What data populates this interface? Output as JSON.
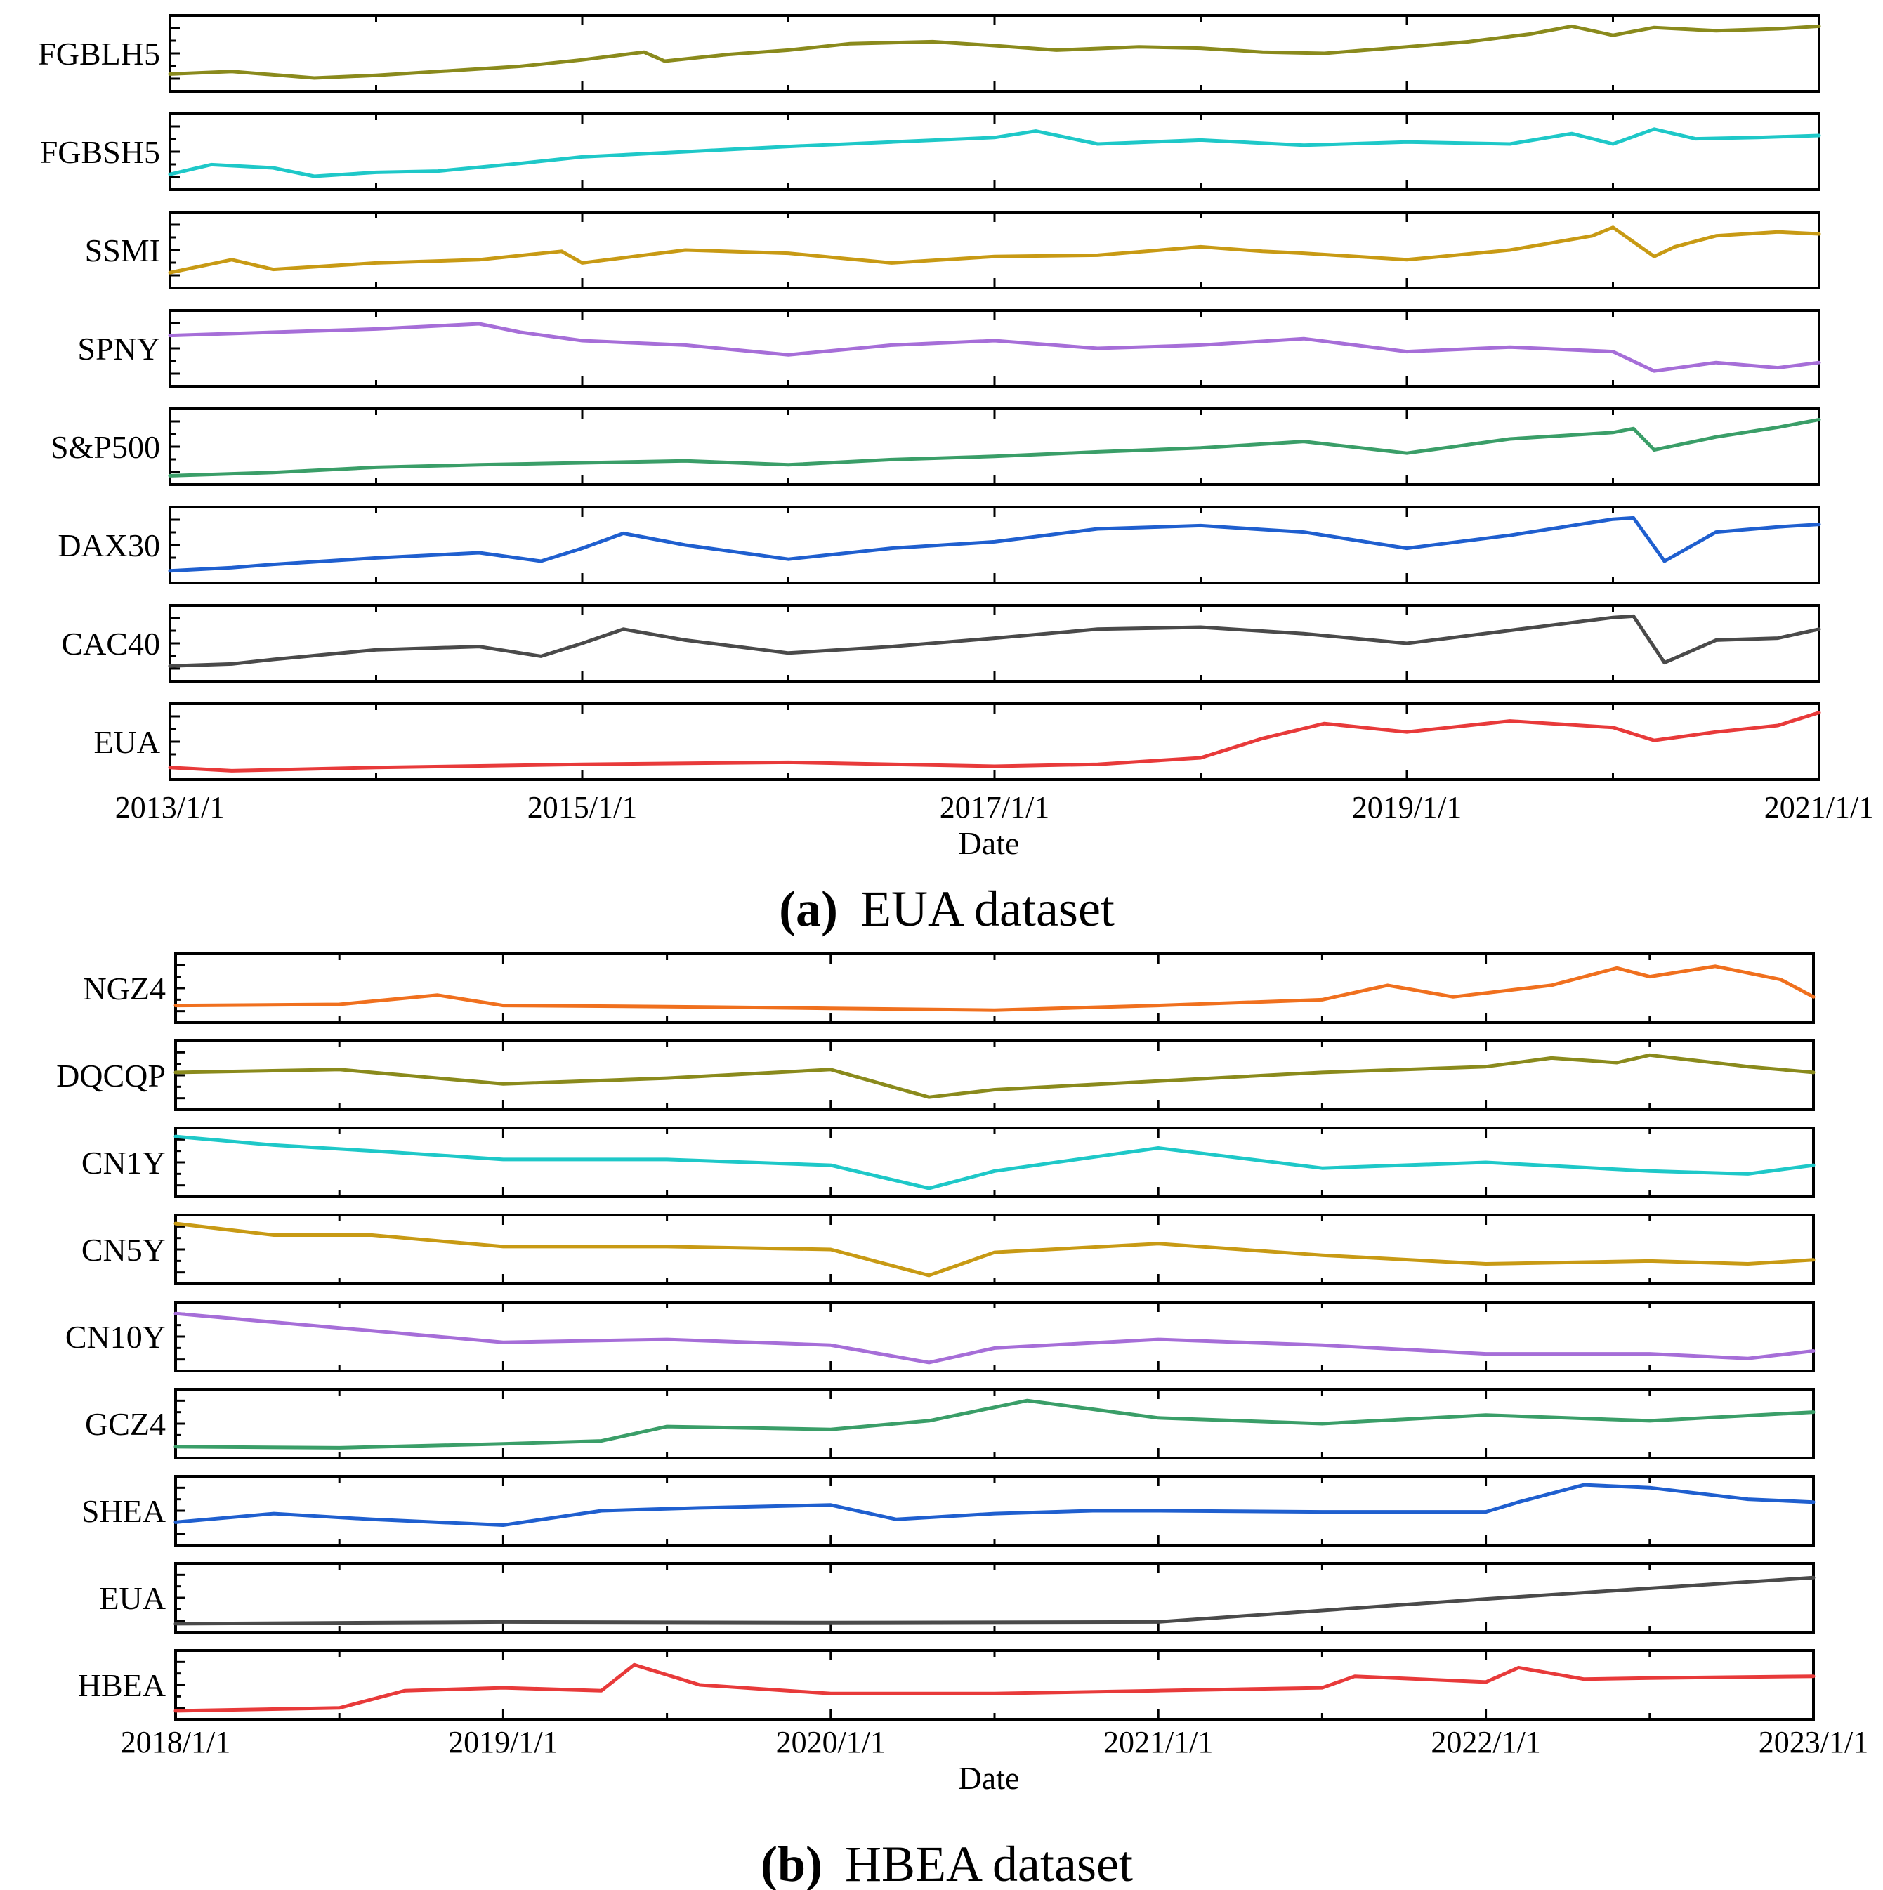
{
  "chart_data": [
    {
      "type": "line",
      "panel_id": "a",
      "caption_letter": "(a)",
      "caption_title": "EUA dataset",
      "xlabel": "Date",
      "x_ticks": [
        "2013/1/1",
        "2015/1/1",
        "2017/1/1",
        "2019/1/1",
        "2021/1/1"
      ],
      "x_range": [
        2013.0,
        2021.0
      ],
      "y_range": [
        0,
        1
      ],
      "y_values_note": "Normalized levels (0 = panel bottom, 1 = panel top); no y tick labels are printed.",
      "grid": false,
      "series": [
        {
          "name": "FGBLH5",
          "color": "#8a8a1c",
          "x": [
            2013.0,
            2013.3,
            2013.7,
            2014.0,
            2014.3,
            2014.7,
            2015.0,
            2015.3,
            2015.4,
            2015.7,
            2016.0,
            2016.3,
            2016.7,
            2017.0,
            2017.3,
            2017.7,
            2018.0,
            2018.3,
            2018.6,
            2019.0,
            2019.3,
            2019.6,
            2019.8,
            2020.0,
            2020.2,
            2020.5,
            2020.8,
            2021.0
          ],
          "values": [
            0.18,
            0.22,
            0.12,
            0.16,
            0.22,
            0.3,
            0.4,
            0.52,
            0.38,
            0.48,
            0.55,
            0.65,
            0.68,
            0.62,
            0.55,
            0.6,
            0.58,
            0.52,
            0.5,
            0.6,
            0.68,
            0.8,
            0.92,
            0.78,
            0.9,
            0.85,
            0.88,
            0.92
          ]
        },
        {
          "name": "FGBSH5",
          "color": "#1ec8c8",
          "x": [
            2013.0,
            2013.2,
            2013.5,
            2013.7,
            2014.0,
            2014.3,
            2014.7,
            2015.0,
            2015.5,
            2016.0,
            2016.5,
            2017.0,
            2017.2,
            2017.5,
            2018.0,
            2018.5,
            2019.0,
            2019.5,
            2019.8,
            2020.0,
            2020.2,
            2020.4,
            2020.7,
            2021.0
          ],
          "values": [
            0.15,
            0.3,
            0.25,
            0.12,
            0.18,
            0.2,
            0.32,
            0.42,
            0.5,
            0.58,
            0.65,
            0.72,
            0.82,
            0.62,
            0.68,
            0.6,
            0.65,
            0.62,
            0.78,
            0.62,
            0.85,
            0.7,
            0.72,
            0.75
          ]
        },
        {
          "name": "SSMI",
          "color": "#c89a14",
          "x": [
            2013.0,
            2013.3,
            2013.5,
            2014.0,
            2014.5,
            2014.9,
            2015.0,
            2015.5,
            2016.0,
            2016.5,
            2017.0,
            2017.5,
            2018.0,
            2018.3,
            2018.5,
            2019.0,
            2019.5,
            2019.9,
            2020.0,
            2020.2,
            2020.3,
            2020.5,
            2020.8,
            2021.0
          ],
          "values": [
            0.15,
            0.35,
            0.2,
            0.3,
            0.35,
            0.48,
            0.3,
            0.5,
            0.45,
            0.3,
            0.4,
            0.42,
            0.55,
            0.48,
            0.45,
            0.35,
            0.5,
            0.72,
            0.85,
            0.4,
            0.55,
            0.72,
            0.78,
            0.75
          ]
        },
        {
          "name": "SPNY",
          "color": "#a66ed8",
          "x": [
            2013.0,
            2013.5,
            2014.0,
            2014.5,
            2014.7,
            2015.0,
            2015.5,
            2016.0,
            2016.5,
            2017.0,
            2017.5,
            2018.0,
            2018.5,
            2019.0,
            2019.5,
            2020.0,
            2020.2,
            2020.5,
            2020.8,
            2021.0
          ],
          "values": [
            0.7,
            0.75,
            0.8,
            0.88,
            0.75,
            0.62,
            0.55,
            0.4,
            0.55,
            0.62,
            0.5,
            0.55,
            0.65,
            0.45,
            0.52,
            0.45,
            0.15,
            0.28,
            0.2,
            0.28
          ]
        },
        {
          "name": "S&P500",
          "color": "#3a9e68",
          "x": [
            2013.0,
            2013.5,
            2014.0,
            2014.5,
            2015.0,
            2015.5,
            2016.0,
            2016.5,
            2017.0,
            2017.5,
            2018.0,
            2018.5,
            2019.0,
            2019.5,
            2020.0,
            2020.1,
            2020.2,
            2020.5,
            2020.8,
            2021.0
          ],
          "values": [
            0.05,
            0.1,
            0.18,
            0.22,
            0.25,
            0.28,
            0.22,
            0.3,
            0.35,
            0.42,
            0.48,
            0.58,
            0.4,
            0.62,
            0.72,
            0.78,
            0.45,
            0.65,
            0.8,
            0.92
          ]
        },
        {
          "name": "DAX30",
          "color": "#1f5fcf",
          "x": [
            2013.0,
            2013.3,
            2013.5,
            2014.0,
            2014.5,
            2014.8,
            2015.0,
            2015.2,
            2015.5,
            2016.0,
            2016.5,
            2017.0,
            2017.5,
            2018.0,
            2018.5,
            2019.0,
            2019.5,
            2020.0,
            2020.1,
            2020.25,
            2020.5,
            2020.8,
            2021.0
          ],
          "values": [
            0.1,
            0.15,
            0.2,
            0.3,
            0.38,
            0.25,
            0.45,
            0.68,
            0.5,
            0.28,
            0.45,
            0.55,
            0.75,
            0.8,
            0.7,
            0.45,
            0.65,
            0.9,
            0.92,
            0.25,
            0.7,
            0.78,
            0.82
          ]
        },
        {
          "name": "CAC40",
          "color": "#4a4a4a",
          "x": [
            2013.0,
            2013.3,
            2013.5,
            2014.0,
            2014.5,
            2014.8,
            2015.0,
            2015.2,
            2015.5,
            2016.0,
            2016.5,
            2017.0,
            2017.5,
            2018.0,
            2018.5,
            2019.0,
            2019.5,
            2020.0,
            2020.1,
            2020.25,
            2020.5,
            2020.8,
            2021.0
          ],
          "values": [
            0.15,
            0.18,
            0.25,
            0.4,
            0.45,
            0.3,
            0.5,
            0.72,
            0.55,
            0.35,
            0.45,
            0.58,
            0.72,
            0.75,
            0.65,
            0.5,
            0.7,
            0.9,
            0.92,
            0.2,
            0.55,
            0.58,
            0.72
          ]
        },
        {
          "name": "EUA",
          "color": "#e83a3a",
          "x": [
            2013.0,
            2013.3,
            2014.0,
            2015.0,
            2016.0,
            2017.0,
            2017.5,
            2018.0,
            2018.3,
            2018.6,
            2019.0,
            2019.5,
            2020.0,
            2020.2,
            2020.5,
            2020.8,
            2021.0
          ],
          "values": [
            0.1,
            0.05,
            0.1,
            0.15,
            0.18,
            0.12,
            0.15,
            0.25,
            0.55,
            0.78,
            0.65,
            0.82,
            0.72,
            0.52,
            0.65,
            0.75,
            0.95
          ]
        }
      ]
    },
    {
      "type": "line",
      "panel_id": "b",
      "caption_letter": "(b)",
      "caption_title": "HBEA dataset",
      "xlabel": "Date",
      "x_ticks": [
        "2018/1/1",
        "2019/1/1",
        "2020/1/1",
        "2021/1/1",
        "2022/1/1",
        "2023/1/1"
      ],
      "x_range": [
        2018.0,
        2023.0
      ],
      "y_range": [
        0,
        1
      ],
      "y_values_note": "Normalized levels (0 = panel bottom, 1 = panel top); no y tick labels are printed.",
      "grid": false,
      "series": [
        {
          "name": "NGZ4",
          "color": "#f0701e",
          "x": [
            2018.0,
            2018.5,
            2018.8,
            2019.0,
            2019.5,
            2020.0,
            2020.5,
            2021.0,
            2021.5,
            2021.7,
            2021.9,
            2022.2,
            2022.4,
            2022.5,
            2022.7,
            2022.9,
            2023.0
          ],
          "values": [
            0.2,
            0.22,
            0.38,
            0.2,
            0.18,
            0.15,
            0.12,
            0.2,
            0.3,
            0.55,
            0.35,
            0.55,
            0.85,
            0.7,
            0.88,
            0.65,
            0.35
          ]
        },
        {
          "name": "DQCQP",
          "color": "#8a8a1c",
          "x": [
            2018.0,
            2018.5,
            2019.0,
            2019.5,
            2020.0,
            2020.3,
            2020.5,
            2021.0,
            2021.5,
            2022.0,
            2022.2,
            2022.4,
            2022.5,
            2022.8,
            2023.0
          ],
          "values": [
            0.55,
            0.6,
            0.35,
            0.45,
            0.6,
            0.12,
            0.25,
            0.4,
            0.55,
            0.65,
            0.8,
            0.72,
            0.85,
            0.65,
            0.55
          ]
        },
        {
          "name": "CN1Y",
          "color": "#1ec8c8",
          "x": [
            2018.0,
            2018.3,
            2018.6,
            2019.0,
            2019.5,
            2020.0,
            2020.3,
            2020.5,
            2021.0,
            2021.5,
            2022.0,
            2022.5,
            2022.8,
            2023.0
          ],
          "values": [
            0.95,
            0.8,
            0.7,
            0.55,
            0.55,
            0.45,
            0.05,
            0.35,
            0.75,
            0.4,
            0.5,
            0.35,
            0.3,
            0.45
          ]
        },
        {
          "name": "CN5Y",
          "color": "#c89a14",
          "x": [
            2018.0,
            2018.3,
            2018.6,
            2019.0,
            2019.5,
            2020.0,
            2020.3,
            2020.5,
            2021.0,
            2021.5,
            2022.0,
            2022.5,
            2022.8,
            2023.0
          ],
          "values": [
            0.95,
            0.75,
            0.75,
            0.55,
            0.55,
            0.5,
            0.05,
            0.45,
            0.6,
            0.4,
            0.25,
            0.3,
            0.25,
            0.32
          ]
        },
        {
          "name": "CN10Y",
          "color": "#a66ed8",
          "x": [
            2018.0,
            2018.3,
            2018.6,
            2019.0,
            2019.5,
            2020.0,
            2020.3,
            2020.5,
            2021.0,
            2021.5,
            2022.0,
            2022.5,
            2022.8,
            2023.0
          ],
          "values": [
            0.9,
            0.75,
            0.6,
            0.4,
            0.45,
            0.35,
            0.05,
            0.3,
            0.45,
            0.35,
            0.2,
            0.2,
            0.12,
            0.25
          ]
        },
        {
          "name": "GCZ4",
          "color": "#3a9e68",
          "x": [
            2018.0,
            2018.5,
            2019.0,
            2019.3,
            2019.5,
            2020.0,
            2020.3,
            2020.6,
            2021.0,
            2021.5,
            2022.0,
            2022.5,
            2023.0
          ],
          "values": [
            0.1,
            0.08,
            0.15,
            0.2,
            0.45,
            0.4,
            0.55,
            0.9,
            0.6,
            0.5,
            0.65,
            0.55,
            0.7
          ]
        },
        {
          "name": "SHEA",
          "color": "#1f5fcf",
          "x": [
            2018.0,
            2018.3,
            2018.6,
            2019.0,
            2019.3,
            2019.6,
            2020.0,
            2020.2,
            2020.5,
            2020.8,
            2021.0,
            2021.5,
            2022.0,
            2022.1,
            2022.3,
            2022.5,
            2022.8,
            2023.0
          ],
          "values": [
            0.3,
            0.45,
            0.35,
            0.25,
            0.5,
            0.55,
            0.6,
            0.35,
            0.45,
            0.5,
            0.5,
            0.48,
            0.48,
            0.65,
            0.95,
            0.9,
            0.7,
            0.65
          ]
        },
        {
          "name": "EUA",
          "color": "#4a4a4a",
          "x": [
            2018.0,
            2019.0,
            2020.0,
            2021.0,
            2022.0,
            2023.0
          ],
          "values": [
            0.05,
            0.08,
            0.07,
            0.08,
            0.48,
            0.85
          ]
        },
        {
          "name": "HBEA",
          "color": "#e83a3a",
          "x": [
            2018.0,
            2018.5,
            2018.7,
            2019.0,
            2019.3,
            2019.4,
            2019.6,
            2020.0,
            2020.5,
            2021.0,
            2021.5,
            2021.6,
            2022.0,
            2022.1,
            2022.3,
            2022.5,
            2023.0
          ],
          "values": [
            0.05,
            0.1,
            0.4,
            0.45,
            0.4,
            0.85,
            0.5,
            0.35,
            0.35,
            0.4,
            0.45,
            0.65,
            0.55,
            0.8,
            0.6,
            0.62,
            0.65
          ]
        }
      ]
    }
  ]
}
